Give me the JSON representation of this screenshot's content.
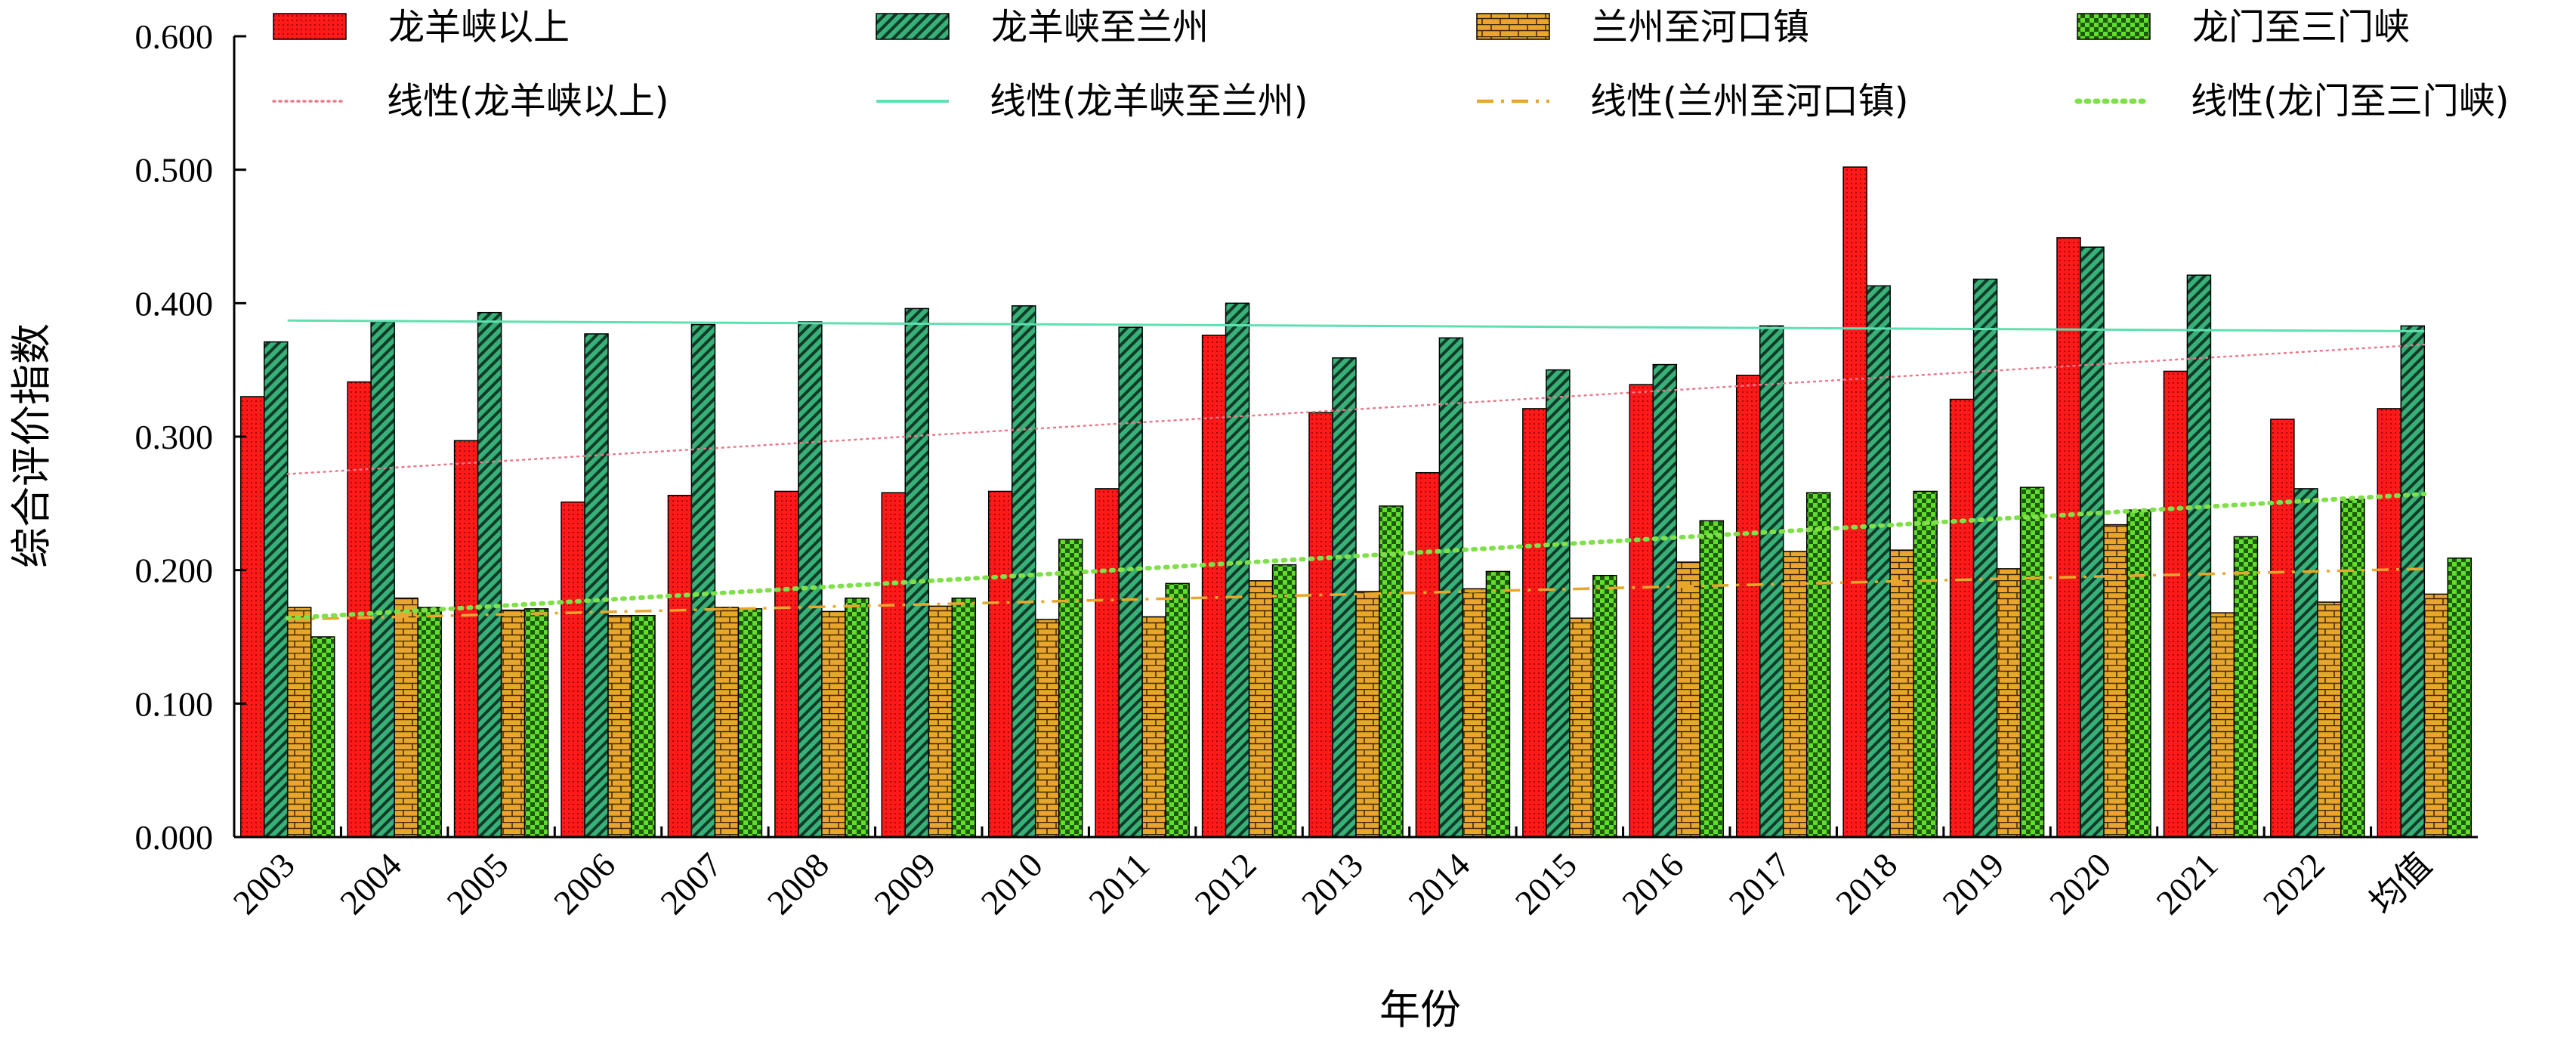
{
  "chart_data": {
    "type": "bar",
    "categories": [
      "2003",
      "2004",
      "2005",
      "2006",
      "2007",
      "2008",
      "2009",
      "2010",
      "2011",
      "2012",
      "2013",
      "2014",
      "2015",
      "2016",
      "2017",
      "2018",
      "2019",
      "2020",
      "2021",
      "2022",
      "均值"
    ],
    "series": [
      {
        "name": "龙羊峡以上",
        "color": "#ff1a1a",
        "pattern": "dots",
        "values": [
          0.33,
          0.341,
          0.297,
          0.251,
          0.256,
          0.259,
          0.258,
          0.259,
          0.261,
          0.376,
          0.318,
          0.273,
          0.321,
          0.339,
          0.346,
          0.502,
          0.328,
          0.449,
          0.349,
          0.313,
          0.321
        ]
      },
      {
        "name": "龙羊峡至兰州",
        "color": "#2e9e6b",
        "pattern": "diagonal",
        "values": [
          0.371,
          0.386,
          0.393,
          0.377,
          0.384,
          0.386,
          0.396,
          0.398,
          0.382,
          0.4,
          0.359,
          0.374,
          0.35,
          0.354,
          0.383,
          0.413,
          0.418,
          0.442,
          0.421,
          0.261,
          0.383
        ]
      },
      {
        "name": "兰州至河口镇",
        "color": "#e8a72c",
        "pattern": "brick",
        "values": [
          0.172,
          0.179,
          0.17,
          0.166,
          0.172,
          0.169,
          0.173,
          0.163,
          0.165,
          0.192,
          0.184,
          0.186,
          0.164,
          0.206,
          0.214,
          0.215,
          0.201,
          0.234,
          0.168,
          0.176,
          0.182
        ]
      },
      {
        "name": "龙门至三门峡",
        "color": "#5fdf2c",
        "pattern": "checker",
        "values": [
          0.15,
          0.172,
          0.171,
          0.166,
          0.171,
          0.179,
          0.179,
          0.223,
          0.19,
          0.204,
          0.248,
          0.199,
          0.196,
          0.237,
          0.258,
          0.259,
          0.262,
          0.245,
          0.225,
          0.253,
          0.209
        ]
      }
    ],
    "trendlines": [
      {
        "name": "线性(龙羊峡以上)",
        "color": "#e97a8c",
        "style": "dotted",
        "start": 0.272,
        "end": 0.369
      },
      {
        "name": "线性(龙羊峡至兰州)",
        "color": "#5fe0b0",
        "style": "solid",
        "start": 0.387,
        "end": 0.379
      },
      {
        "name": "线性(兰州至河口镇)",
        "color": "#e8a72c",
        "style": "dashdot",
        "start": 0.163,
        "end": 0.201
      },
      {
        "name": "线性(龙门至三门峡)",
        "color": "#7fe04a",
        "style": "dotted-thick",
        "start": 0.164,
        "end": 0.257
      }
    ],
    "ylim": [
      0,
      0.6
    ],
    "yticks": [
      "0.000",
      "0.100",
      "0.200",
      "0.300",
      "0.400",
      "0.500",
      "0.600"
    ],
    "xlabel": "年份",
    "ylabel": "综合评价指数",
    "legend_position": "top"
  }
}
